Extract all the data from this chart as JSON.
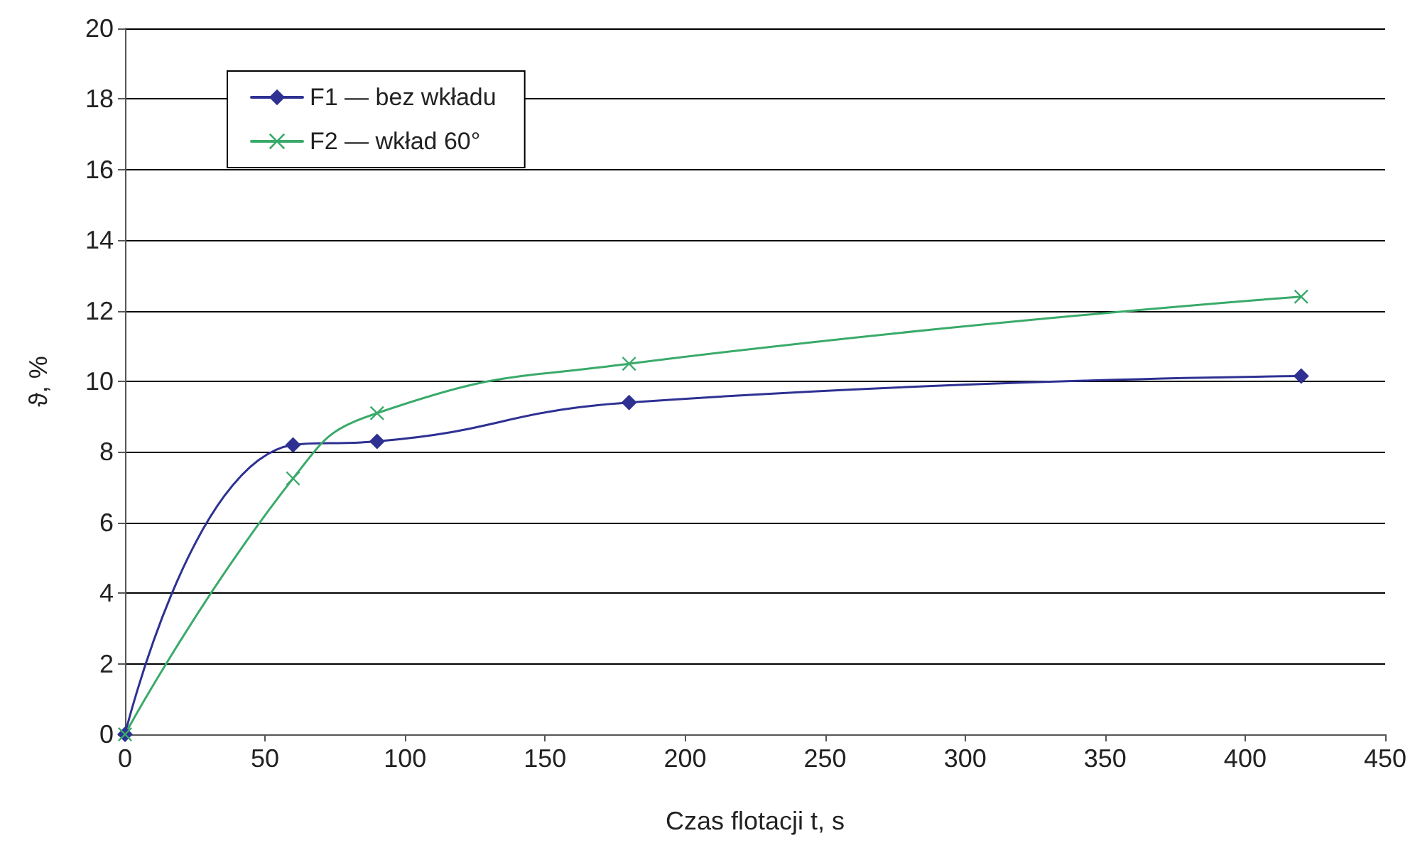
{
  "chart_data": {
    "type": "line",
    "xlabel": "Czas flotacji t, s",
    "ylabel": "ϑ, %",
    "xlim": [
      0,
      450
    ],
    "xticks": [
      0,
      50,
      100,
      150,
      200,
      250,
      300,
      350,
      400,
      450
    ],
    "ylim": [
      0,
      20
    ],
    "yticks": [
      0,
      2,
      4,
      6,
      8,
      10,
      12,
      14,
      16,
      18,
      20
    ],
    "grid": "y",
    "legend": "top left",
    "line_style": "solid",
    "series": [
      {
        "name": "F1 — bez wkładu",
        "color": "#2e3192",
        "marker": "diamond",
        "x": [
          0,
          60,
          90,
          180,
          420
        ],
        "values": [
          0,
          8.2,
          8.3,
          9.4,
          10.15
        ]
      },
      {
        "name": "F2 — wkład 60°",
        "color": "#3aaa6a",
        "marker": "cross",
        "x": [
          0,
          60,
          90,
          180,
          420
        ],
        "values": [
          0,
          7.25,
          9.1,
          10.5,
          12.4
        ]
      }
    ]
  }
}
